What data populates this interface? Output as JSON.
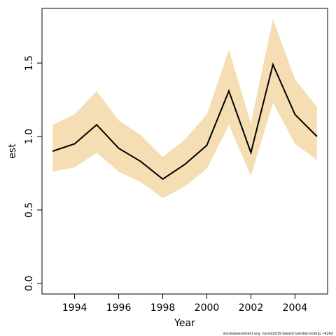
{
  "chart_data": {
    "type": "line",
    "xlabel": "Year",
    "ylabel": "est",
    "x": [
      1993,
      1994,
      1995,
      1996,
      1997,
      1998,
      1999,
      2000,
      2001,
      2002,
      2003,
      2004,
      2005
    ],
    "values": [
      0.9,
      0.95,
      1.08,
      0.92,
      0.83,
      0.71,
      0.81,
      0.94,
      1.31,
      0.89,
      1.49,
      1.15,
      1.0
    ],
    "color": "#000000",
    "band": {
      "lower": [
        0.76,
        0.79,
        0.89,
        0.76,
        0.69,
        0.58,
        0.66,
        0.78,
        1.08,
        0.73,
        1.23,
        0.95,
        0.84
      ],
      "upper": [
        1.08,
        1.15,
        1.31,
        1.11,
        1.01,
        0.86,
        0.98,
        1.15,
        1.59,
        1.09,
        1.8,
        1.39,
        1.2
      ],
      "color": "#f5deb3"
    },
    "xlim": [
      1992.52,
      2005.48
    ],
    "ylim": [
      -0.072,
      1.872
    ],
    "xticks": [
      1994,
      1996,
      1998,
      2000,
      2002,
      2004
    ],
    "yticks": [
      {
        "value": 0,
        "label": "0.0"
      },
      0.5,
      {
        "value": 1,
        "label": "1.0"
      },
      1.5
    ],
    "footer": "stockassessment.org, nscod2015-base3-nonstat-noship, r4242"
  }
}
